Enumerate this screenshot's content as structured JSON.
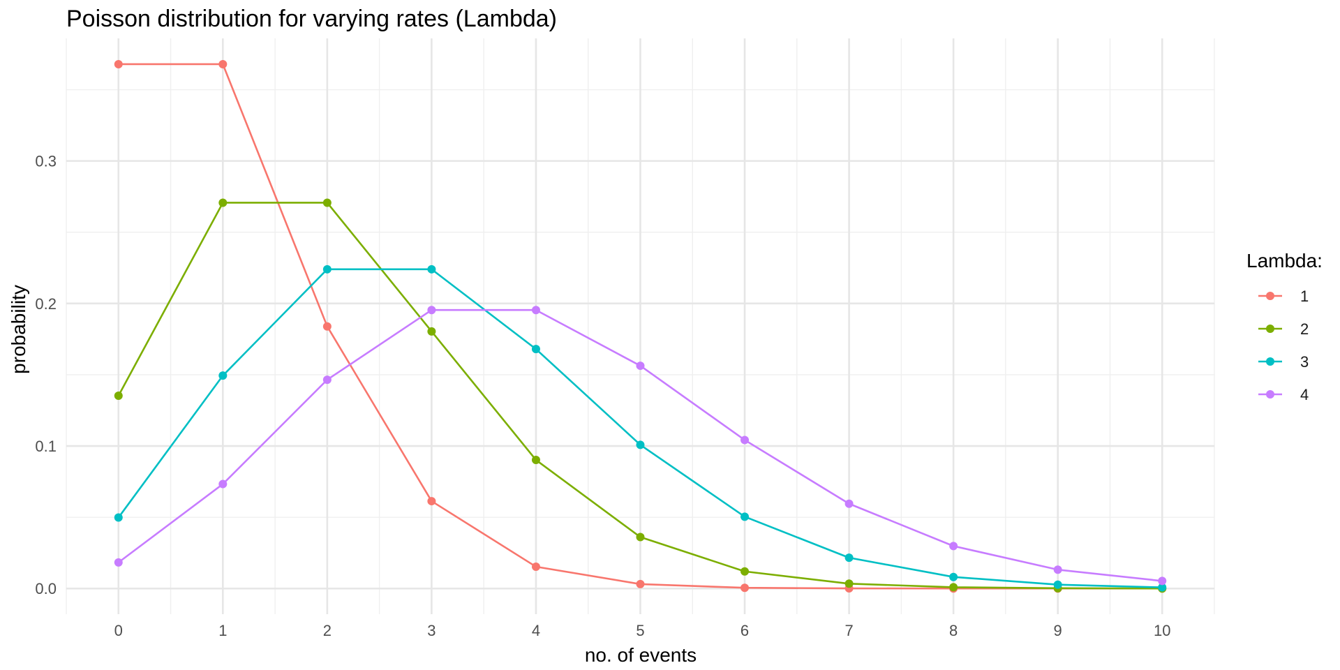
{
  "chart_data": {
    "type": "line",
    "title": "Poisson distribution for varying rates (Lambda)",
    "xlabel": "no. of events",
    "ylabel": "probability",
    "x": [
      0,
      1,
      2,
      3,
      4,
      5,
      6,
      7,
      8,
      9,
      10
    ],
    "xlim": [
      -0.5,
      10.5
    ],
    "ylim": [
      -0.018,
      0.386
    ],
    "x_ticks": [
      "0",
      "1",
      "2",
      "3",
      "4",
      "5",
      "6",
      "7",
      "8",
      "9",
      "10"
    ],
    "y_ticks": [
      {
        "value": 0.0,
        "label": "0.0"
      },
      {
        "value": 0.1,
        "label": "0.1"
      },
      {
        "value": 0.2,
        "label": "0.2"
      },
      {
        "value": 0.3,
        "label": "0.3"
      }
    ],
    "grid": true,
    "legend": {
      "title": "Lambda:",
      "position": "right"
    },
    "series": [
      {
        "name": "1",
        "color": "#F8766D",
        "values": [
          0.3679,
          0.3679,
          0.1839,
          0.0613,
          0.0153,
          0.0031,
          0.0005,
          0.0001,
          0.0,
          0.0,
          0.0
        ]
      },
      {
        "name": "2",
        "color": "#7CAE00",
        "values": [
          0.1353,
          0.2707,
          0.2707,
          0.1804,
          0.0902,
          0.0361,
          0.012,
          0.0034,
          0.0009,
          0.0002,
          0.0
        ]
      },
      {
        "name": "3",
        "color": "#00BFC4",
        "values": [
          0.0498,
          0.1494,
          0.224,
          0.224,
          0.168,
          0.1008,
          0.0504,
          0.0216,
          0.0081,
          0.0027,
          0.0008
        ]
      },
      {
        "name": "4",
        "color": "#C77CFF",
        "values": [
          0.0183,
          0.0733,
          0.1465,
          0.1954,
          0.1954,
          0.1563,
          0.1042,
          0.0595,
          0.0298,
          0.0132,
          0.0053
        ]
      }
    ]
  }
}
